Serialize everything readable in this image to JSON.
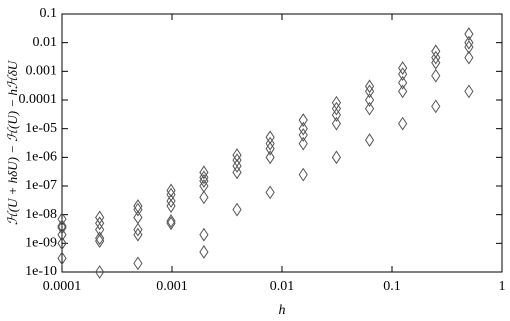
{
  "chart_data": {
    "type": "scatter",
    "xlabel": "h",
    "ylabel": "ℋ(U + hδU) − ℋ(U) − hℋδU",
    "x": [
      0.0001,
      0.0001,
      0.0001,
      0.0001,
      0.0001,
      0.0001,
      0.00022,
      0.00022,
      0.00022,
      0.00022,
      0.00022,
      0.00022,
      0.00049,
      0.00049,
      0.00049,
      0.00049,
      0.00049,
      0.00049,
      0.00098,
      0.00098,
      0.00098,
      0.00098,
      0.00098,
      0.00098,
      0.00195,
      0.00195,
      0.00195,
      0.00195,
      0.00195,
      0.00195,
      0.00195,
      0.0039,
      0.0039,
      0.0039,
      0.0039,
      0.0039,
      0.0078,
      0.0078,
      0.0078,
      0.0078,
      0.0078,
      0.0156,
      0.0156,
      0.0156,
      0.0156,
      0.0156,
      0.03125,
      0.03125,
      0.03125,
      0.03125,
      0.03125,
      0.0625,
      0.0625,
      0.0625,
      0.0625,
      0.0625,
      0.125,
      0.125,
      0.125,
      0.125,
      0.125,
      0.25,
      0.25,
      0.25,
      0.25,
      0.25,
      0.5,
      0.5,
      0.5,
      0.5,
      0.5
    ],
    "y": [
      7e-09,
      4e-09,
      3.5e-09,
      2e-09,
      1e-09,
      3e-10,
      8e-09,
      5e-09,
      3e-09,
      1.5e-09,
      1.2e-09,
      1e-10,
      2e-08,
      1.5e-08,
      8e-09,
      3e-09,
      2e-09,
      2e-10,
      7e-08,
      5e-08,
      3e-08,
      2e-08,
      6e-09,
      5e-09,
      3e-07,
      2e-07,
      1.5e-07,
      1e-07,
      4e-08,
      2e-09,
      5e-10,
      1.2e-06,
      8e-07,
      5e-07,
      3e-07,
      1.5e-08,
      5e-06,
      3e-06,
      2e-06,
      1e-06,
      6e-08,
      2e-05,
      1e-05,
      6e-06,
      3e-06,
      2.5e-07,
      8e-05,
      5e-05,
      3e-05,
      1.5e-05,
      1e-06,
      0.0003,
      0.0002,
      0.0001,
      5e-05,
      4e-06,
      0.0013,
      0.0008,
      0.0004,
      0.0002,
      1.5e-05,
      0.005,
      0.003,
      0.002,
      0.0007,
      6e-05,
      0.02,
      0.01,
      0.007,
      0.003,
      0.0002
    ],
    "color": "#555555",
    "xscale": "log",
    "yscale": "log",
    "xlim": [
      0.0001,
      1
    ],
    "ylim": [
      1e-10,
      0.1
    ],
    "xticks": [
      0.0001,
      0.001,
      0.01,
      0.1,
      1
    ],
    "yticks": [
      {
        "value": 1e-10,
        "label": "1e-10"
      },
      {
        "value": 1e-09,
        "label": "1e-09"
      },
      {
        "value": 1e-08,
        "label": "1e-08"
      },
      {
        "value": 1e-07,
        "label": "1e-07"
      },
      {
        "value": 1e-06,
        "label": "1e-06"
      },
      {
        "value": 1e-05,
        "label": "1e-05"
      },
      0.0001,
      0.001,
      0.01,
      0.1
    ]
  }
}
